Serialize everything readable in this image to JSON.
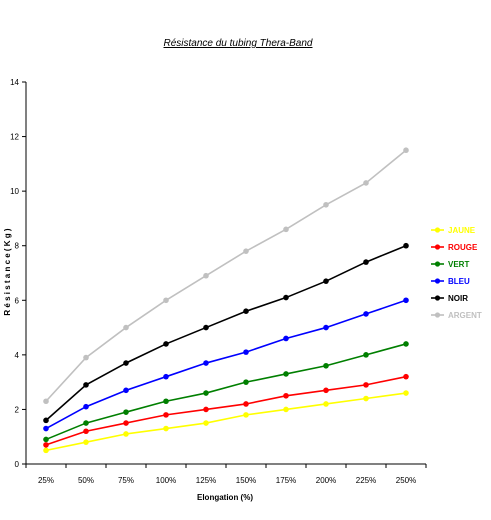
{
  "chart_data": {
    "type": "line",
    "title": "Résistance du tubing Thera-Band",
    "xlabel": "Elongation (%)",
    "ylabel": "R é s i s t a n c e  ( K g )",
    "categories": [
      "25%",
      "50%",
      "75%",
      "100%",
      "125%",
      "150%",
      "175%",
      "200%",
      "225%",
      "250%"
    ],
    "ylim": [
      0,
      14
    ],
    "yticks": [
      "0",
      "2",
      "4",
      "6",
      "8",
      "10",
      "12",
      "14"
    ],
    "grid": false,
    "legend_position": "right",
    "series": [
      {
        "name": "JAUNE",
        "color": "#ffff00",
        "values": [
          0.5,
          0.8,
          1.1,
          1.3,
          1.5,
          1.8,
          2.0,
          2.2,
          2.4,
          2.6
        ]
      },
      {
        "name": "ROUGE",
        "color": "#ff0000",
        "values": [
          0.7,
          1.2,
          1.5,
          1.8,
          2.0,
          2.2,
          2.5,
          2.7,
          2.9,
          3.2
        ]
      },
      {
        "name": "VERT",
        "color": "#007f00",
        "values": [
          0.9,
          1.5,
          1.9,
          2.3,
          2.6,
          3.0,
          3.3,
          3.6,
          4.0,
          4.4
        ]
      },
      {
        "name": "BLEU",
        "color": "#0000ff",
        "values": [
          1.3,
          2.1,
          2.7,
          3.2,
          3.7,
          4.1,
          4.6,
          5.0,
          5.5,
          6.0
        ]
      },
      {
        "name": "NOIR",
        "color": "#000000",
        "values": [
          1.6,
          2.9,
          3.7,
          4.4,
          5.0,
          5.6,
          6.1,
          6.7,
          7.4,
          8.0
        ]
      },
      {
        "name": "ARGENT",
        "color": "#c0c0c0",
        "values": [
          2.3,
          3.9,
          5.0,
          6.0,
          6.9,
          7.8,
          8.6,
          9.5,
          10.3,
          11.5
        ]
      }
    ]
  }
}
